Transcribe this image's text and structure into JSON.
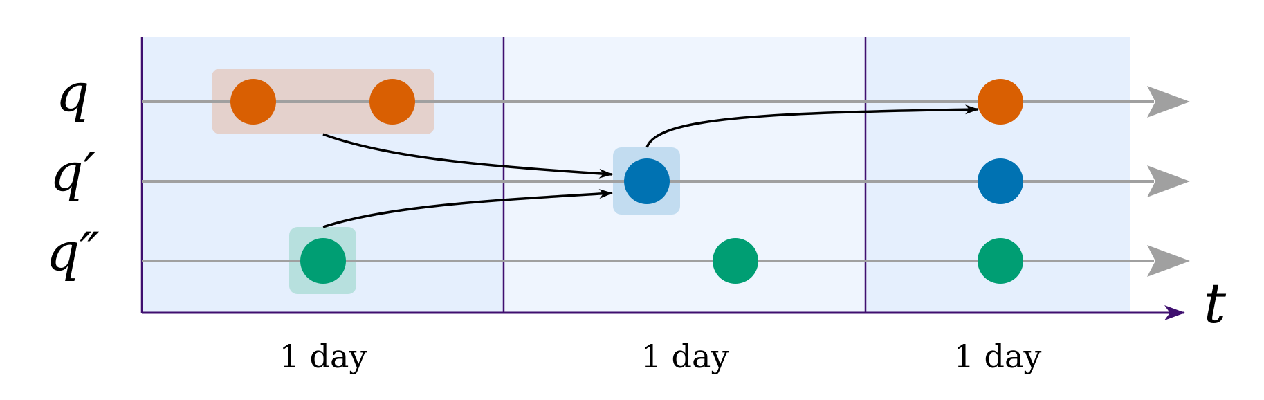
{
  "diagram": {
    "rows": [
      {
        "id": "q",
        "label": "q"
      },
      {
        "id": "q1",
        "label": "q′"
      },
      {
        "id": "q2",
        "label": "q″"
      }
    ],
    "time_axis_label": "t",
    "periods": [
      {
        "label": "1 day"
      },
      {
        "label": "1 day"
      },
      {
        "label": "1 day"
      }
    ],
    "colors": {
      "orange": "#d95f02",
      "blue": "#0072b2",
      "green": "#009e73",
      "period_fill_1": "#e5effd",
      "period_fill_2": "#eff5fe",
      "period_fill_3": "#e5effd",
      "axis": "#3f0f6f",
      "timeline": "#a0a0a0"
    }
  }
}
